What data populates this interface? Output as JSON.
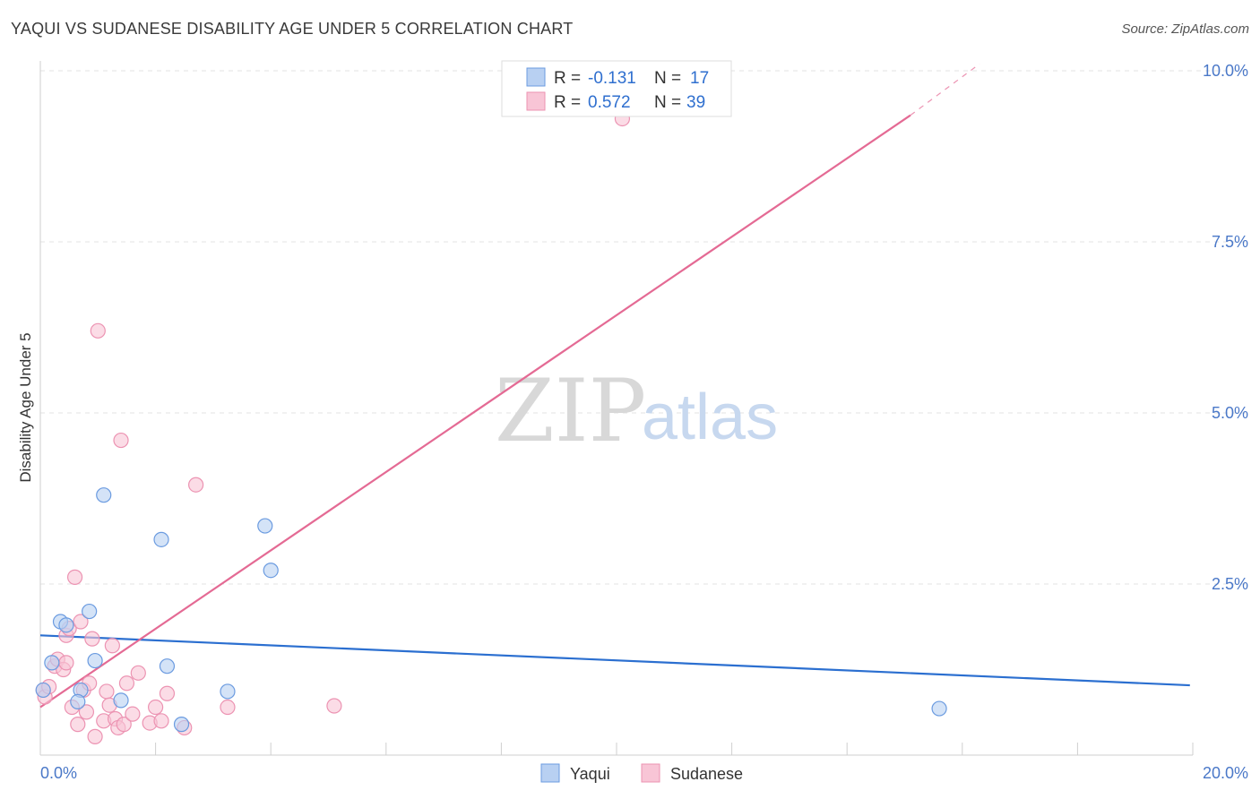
{
  "title": "YAQUI VS SUDANESE DISABILITY AGE UNDER 5 CORRELATION CHART",
  "source": "Source: ZipAtlas.com",
  "watermark": {
    "zip": "ZIP",
    "atlas": "atlas"
  },
  "colors": {
    "yaqui_fill": "#b8d0f2",
    "yaqui_stroke": "#6b9be0",
    "yaqui_line": "#2b6fd0",
    "sudanese_fill": "#f8c5d6",
    "sudanese_stroke": "#ec93b2",
    "sudanese_line": "#e46a94",
    "tick_text": "#4a78c8",
    "grid": "#e3e3e3"
  },
  "legend": {
    "rows": [
      {
        "r_label": "R =",
        "r_value": "-0.131",
        "n_label": "N =",
        "n_value": "17"
      },
      {
        "r_label": "R =",
        "r_value": "0.572",
        "n_label": "N =",
        "n_value": "39"
      }
    ]
  },
  "chart_data": {
    "type": "scatter",
    "title": "YAQUI VS SUDANESE DISABILITY AGE UNDER 5 CORRELATION CHART",
    "xlabel": "",
    "ylabel": "Disability Age Under 5",
    "xlim": [
      0,
      20
    ],
    "ylim": [
      0,
      10.5
    ],
    "x_tick_labels": [
      "0.0%",
      "20.0%"
    ],
    "y_ticks": [
      2.5,
      5.0,
      7.5,
      10.0
    ],
    "y_tick_labels": [
      "2.5%",
      "5.0%",
      "7.5%",
      "10.0%"
    ],
    "grid": true,
    "legend_position": "top-center",
    "series": [
      {
        "name": "Yaqui",
        "color": "#6b9be0",
        "points": [
          [
            0.35,
            1.95
          ],
          [
            0.45,
            1.9
          ],
          [
            0.85,
            2.1
          ],
          [
            0.2,
            1.35
          ],
          [
            0.95,
            1.38
          ],
          [
            0.7,
            0.95
          ],
          [
            0.65,
            0.78
          ],
          [
            1.1,
            3.8
          ],
          [
            1.4,
            0.8
          ],
          [
            2.1,
            3.15
          ],
          [
            2.2,
            1.3
          ],
          [
            2.45,
            0.45
          ],
          [
            3.25,
            0.93
          ],
          [
            3.9,
            3.35
          ],
          [
            4.0,
            2.7
          ],
          [
            15.6,
            0.68
          ],
          [
            0.05,
            0.95
          ]
        ],
        "trend": {
          "x": [
            0,
            19.95
          ],
          "y": [
            1.75,
            1.02
          ]
        }
      },
      {
        "name": "Sudanese",
        "color": "#ec93b2",
        "points": [
          [
            0.05,
            0.95
          ],
          [
            0.08,
            0.85
          ],
          [
            0.15,
            1.0
          ],
          [
            0.25,
            1.3
          ],
          [
            0.3,
            1.4
          ],
          [
            0.4,
            1.25
          ],
          [
            0.45,
            1.75
          ],
          [
            0.5,
            1.85
          ],
          [
            0.45,
            1.35
          ],
          [
            0.55,
            0.7
          ],
          [
            0.6,
            2.6
          ],
          [
            0.7,
            1.95
          ],
          [
            0.75,
            0.95
          ],
          [
            0.8,
            0.63
          ],
          [
            0.85,
            1.05
          ],
          [
            0.9,
            1.7
          ],
          [
            0.95,
            0.27
          ],
          [
            1.0,
            6.2
          ],
          [
            1.1,
            0.5
          ],
          [
            1.15,
            0.93
          ],
          [
            1.2,
            0.73
          ],
          [
            1.25,
            1.6
          ],
          [
            1.3,
            0.53
          ],
          [
            1.35,
            0.4
          ],
          [
            1.4,
            4.6
          ],
          [
            1.45,
            0.45
          ],
          [
            1.5,
            1.05
          ],
          [
            1.7,
            1.2
          ],
          [
            1.9,
            0.47
          ],
          [
            2.0,
            0.7
          ],
          [
            2.1,
            0.5
          ],
          [
            2.2,
            0.9
          ],
          [
            2.5,
            0.4
          ],
          [
            2.7,
            3.95
          ],
          [
            3.25,
            0.7
          ],
          [
            5.1,
            0.72
          ],
          [
            10.1,
            9.3
          ],
          [
            0.65,
            0.45
          ],
          [
            1.6,
            0.6
          ]
        ],
        "trend": {
          "x": [
            0,
            15.1
          ],
          "y": [
            0.7,
            9.35
          ]
        },
        "trend_dashed": {
          "x": [
            15.1,
            16.3
          ],
          "y": [
            9.35,
            10.1
          ]
        }
      }
    ]
  },
  "bottom_legend": [
    {
      "label": "Yaqui"
    },
    {
      "label": "Sudanese"
    }
  ]
}
